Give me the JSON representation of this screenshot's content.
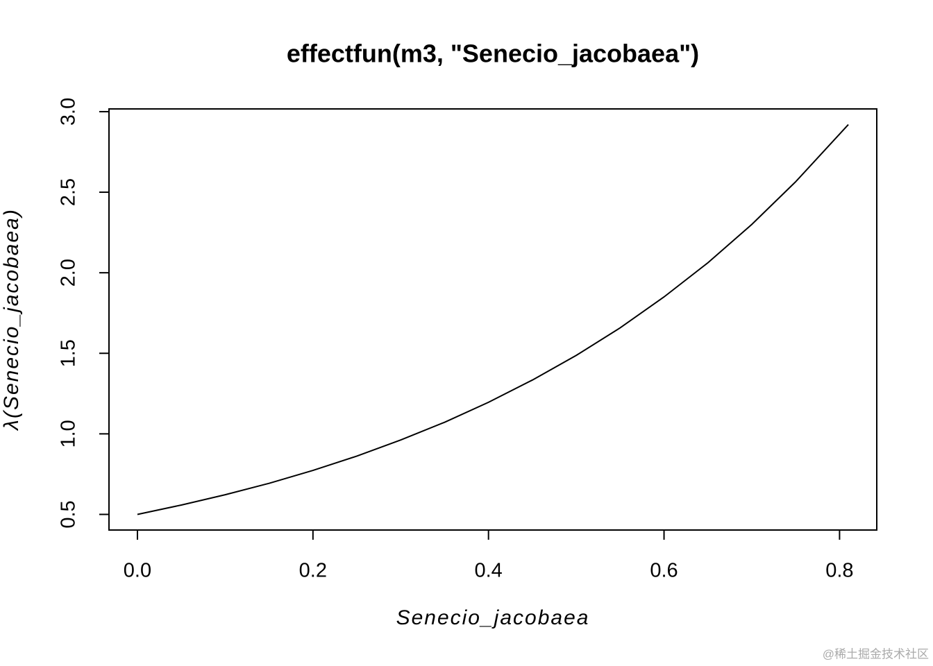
{
  "chart_data": {
    "type": "line",
    "title": "effectfun(m3, \"Senecio_jacobaea\")",
    "xlabel": "Senecio_jacobaea",
    "ylabel": "λ(Senecio_jacobaea)",
    "x": [
      0,
      0.05,
      0.1,
      0.15,
      0.2,
      0.25,
      0.3,
      0.35,
      0.4,
      0.45,
      0.5,
      0.55,
      0.6,
      0.65,
      0.7,
      0.75,
      0.81
    ],
    "series": [
      {
        "color": "#000000",
        "values": [
          0.5,
          0.558,
          0.622,
          0.693,
          0.773,
          0.862,
          0.962,
          1.072,
          1.196,
          1.334,
          1.487,
          1.658,
          1.85,
          2.062,
          2.3,
          2.565,
          2.92
        ]
      }
    ],
    "xlim": [
      -0.0324,
      0.8424
    ],
    "ylim": [
      0.403,
      3.017
    ],
    "xticks": [
      {
        "value": 0,
        "label": "0.0"
      },
      0.2,
      0.4,
      0.6,
      0.8
    ],
    "yticks": [
      0.5,
      {
        "value": 1,
        "label": "1.0"
      },
      1.5,
      {
        "value": 2,
        "label": "2.0"
      },
      2.5,
      {
        "value": 3,
        "label": "3.0"
      }
    ],
    "watermark": "@稀土掘金技术社区"
  }
}
